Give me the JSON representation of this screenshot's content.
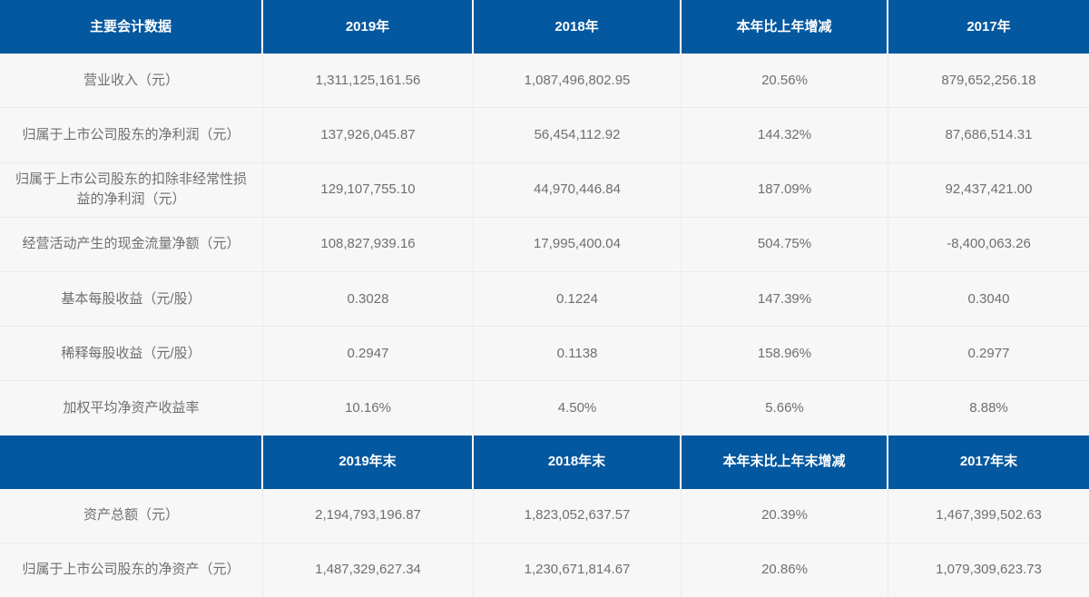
{
  "table": {
    "header1": [
      "主要会计数据",
      "2019年",
      "2018年",
      "本年比上年增减",
      "2017年"
    ],
    "rows1": [
      [
        "营业收入（元）",
        "1,311,125,161.56",
        "1,087,496,802.95",
        "20.56%",
        "879,652,256.18"
      ],
      [
        "归属于上市公司股东的净利润（元）",
        "137,926,045.87",
        "56,454,112.92",
        "144.32%",
        "87,686,514.31"
      ],
      [
        "归属于上市公司股东的扣除非经常性损益的净利润（元）",
        "129,107,755.10",
        "44,970,446.84",
        "187.09%",
        "92,437,421.00"
      ],
      [
        "经营活动产生的现金流量净额（元）",
        "108,827,939.16",
        "17,995,400.04",
        "504.75%",
        "-8,400,063.26"
      ],
      [
        "基本每股收益（元/股）",
        "0.3028",
        "0.1224",
        "147.39%",
        "0.3040"
      ],
      [
        "稀释每股收益（元/股）",
        "0.2947",
        "0.1138",
        "158.96%",
        "0.2977"
      ],
      [
        "加权平均净资产收益率",
        "10.16%",
        "4.50%",
        "5.66%",
        "8.88%"
      ]
    ],
    "header2": [
      "",
      "2019年末",
      "2018年末",
      "本年末比上年末增减",
      "2017年末"
    ],
    "rows2": [
      [
        "资产总额（元）",
        "2,194,793,196.87",
        "1,823,052,637.57",
        "20.39%",
        "1,467,399,502.63"
      ],
      [
        "归属于上市公司股东的净资产（元）",
        "1,487,329,627.34",
        "1,230,671,814.67",
        "20.86%",
        "1,079,309,623.73"
      ]
    ],
    "colors": {
      "header_bg": "#04589f",
      "row_bg": "#f7f7f7",
      "body_text": "#6f6f6f",
      "divider": "#ebebeb"
    }
  }
}
